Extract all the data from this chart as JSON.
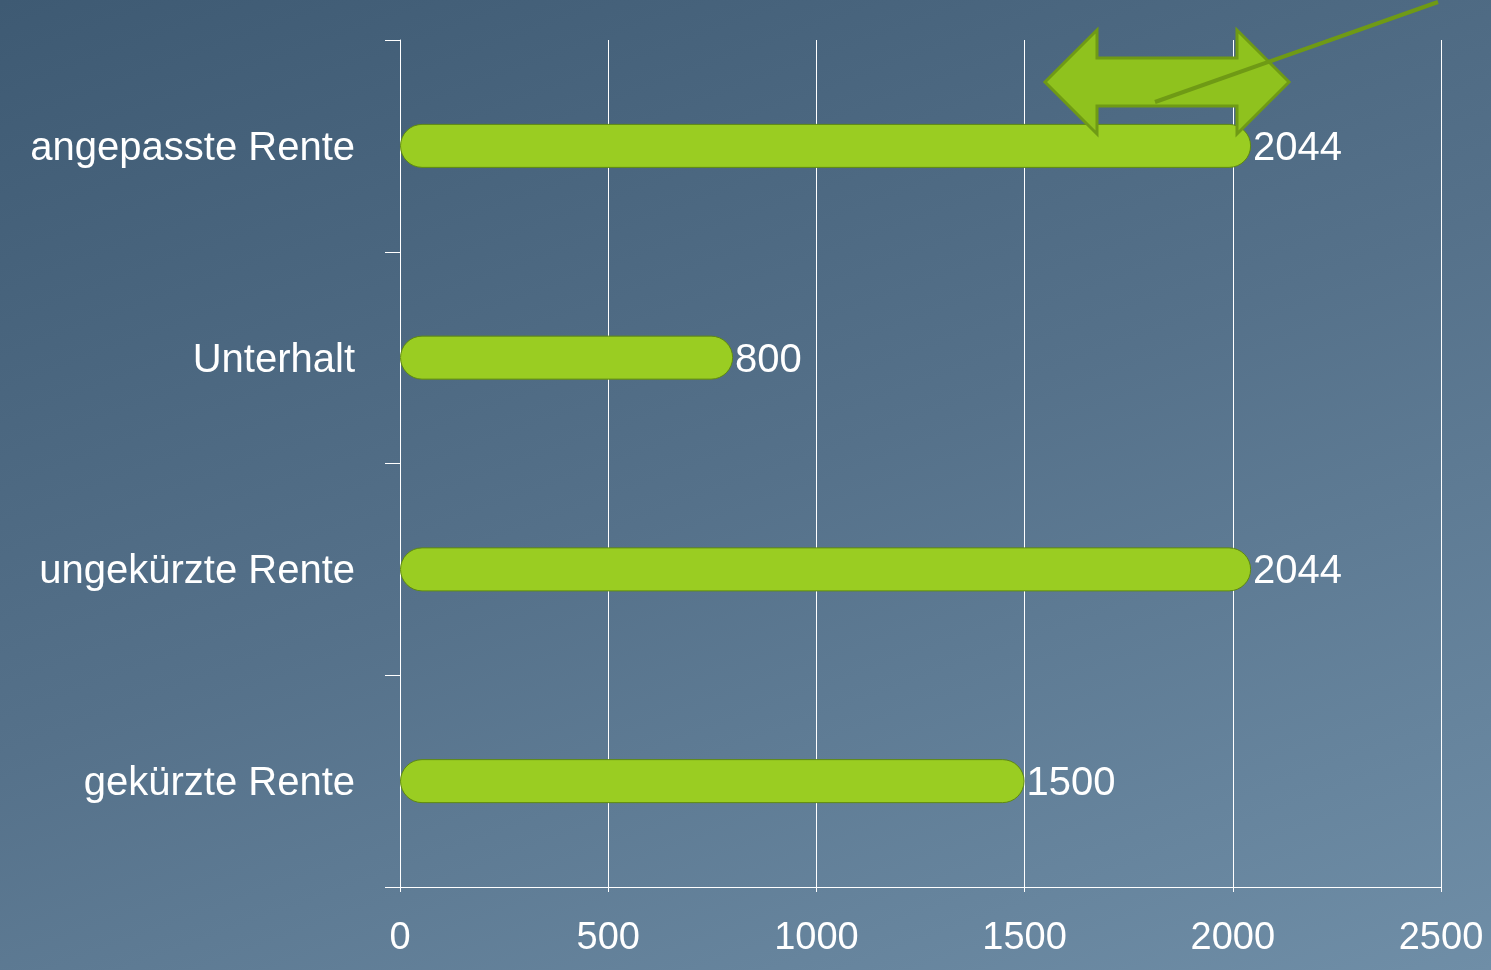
{
  "chart_data": {
    "type": "bar",
    "orientation": "horizontal",
    "categories": [
      "angepasste Rente",
      "Unterhalt",
      "ungekürzte Rente",
      "gekürzte Rente"
    ],
    "values": [
      2044,
      800,
      2044,
      1500
    ],
    "color": "#9acd22",
    "xlim": [
      0,
      2500
    ],
    "xticks": [
      0,
      500,
      1000,
      1500,
      2000,
      2500
    ],
    "grid": "x",
    "data_labels": true
  }
}
